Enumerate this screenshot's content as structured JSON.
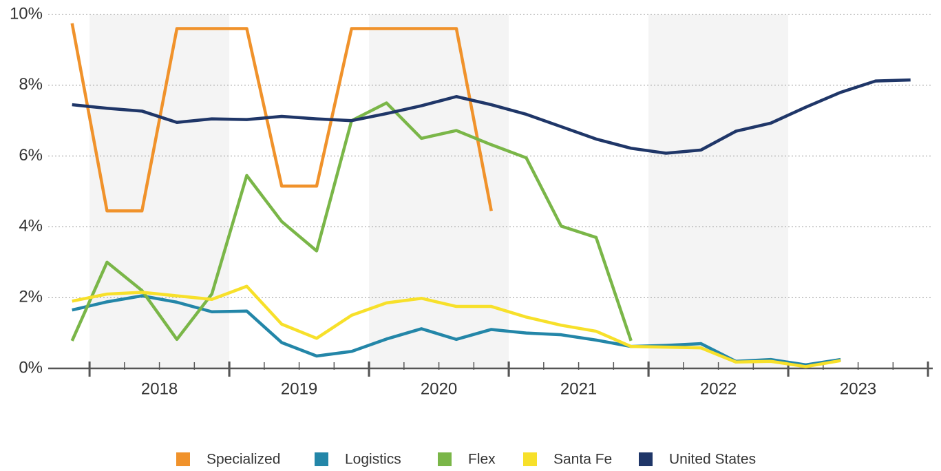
{
  "chart_data": {
    "type": "line",
    "x": [
      2017.875,
      2018.125,
      2018.375,
      2018.625,
      2018.875,
      2019.125,
      2019.375,
      2019.625,
      2019.875,
      2020.125,
      2020.375,
      2020.625,
      2020.875,
      2021.125,
      2021.375,
      2021.625,
      2021.875,
      2022.125,
      2022.375,
      2022.625,
      2022.875,
      2023.125,
      2023.375,
      2023.625,
      2023.875
    ],
    "series": [
      {
        "name": "Specialized",
        "color": "#f0922b",
        "values": [
          9.75,
          4.45,
          4.45,
          9.6,
          9.6,
          9.6,
          5.15,
          5.15,
          9.6,
          9.6,
          9.6,
          9.6,
          4.45,
          null,
          null,
          null,
          null,
          null,
          null,
          null,
          null,
          null,
          null,
          null,
          null
        ]
      },
      {
        "name": "Logistics",
        "color": "#2386a8",
        "values": [
          1.65,
          1.88,
          2.05,
          1.87,
          1.6,
          1.62,
          0.73,
          0.35,
          0.48,
          0.83,
          1.12,
          0.82,
          1.1,
          1.0,
          0.95,
          0.8,
          0.62,
          0.65,
          0.7,
          0.2,
          0.25,
          0.1,
          0.25,
          null,
          null
        ]
      },
      {
        "name": "Flex",
        "color": "#7ab648",
        "values": [
          0.78,
          3.0,
          2.2,
          0.82,
          2.1,
          5.45,
          4.15,
          3.32,
          7.0,
          7.5,
          6.5,
          6.72,
          6.32,
          5.95,
          4.02,
          3.7,
          0.78,
          null,
          null,
          null,
          null,
          null,
          null,
          null,
          null
        ]
      },
      {
        "name": "Santa Fe",
        "color": "#f7e02a",
        "values": [
          1.9,
          2.1,
          2.15,
          2.05,
          1.95,
          2.32,
          1.25,
          0.85,
          1.5,
          1.85,
          1.98,
          1.75,
          1.75,
          1.45,
          1.22,
          1.05,
          0.62,
          0.6,
          0.58,
          0.18,
          0.2,
          0.05,
          0.22,
          null,
          null
        ]
      },
      {
        "name": "United States",
        "color": "#1f3668",
        "values": [
          7.45,
          7.35,
          7.27,
          6.95,
          7.05,
          7.03,
          7.12,
          7.05,
          7.0,
          7.2,
          7.42,
          7.68,
          7.45,
          7.18,
          6.83,
          6.48,
          6.22,
          6.08,
          6.17,
          6.7,
          6.93,
          7.38,
          7.8,
          8.12,
          8.15
        ]
      }
    ],
    "xlim": [
      2017.704,
      2024.034
    ],
    "xticks": [
      {
        "value": 2018.5,
        "label": "2018"
      },
      {
        "value": 2019.5,
        "label": "2019"
      },
      {
        "value": 2020.5,
        "label": "2020"
      },
      {
        "value": 2021.5,
        "label": "2021"
      },
      {
        "value": 2022.5,
        "label": "2022"
      },
      {
        "value": 2023.5,
        "label": "2023"
      }
    ],
    "ylim": [
      0,
      10
    ],
    "yticks": [
      {
        "value": 0,
        "label": "0%"
      },
      {
        "value": 2,
        "label": "2%"
      },
      {
        "value": 4,
        "label": "4%"
      },
      {
        "value": 6,
        "label": "6%"
      },
      {
        "value": 8,
        "label": "8%"
      },
      {
        "value": 10,
        "label": "10%"
      }
    ],
    "grid": true,
    "alternate_bands": true,
    "legend": "bottom"
  }
}
